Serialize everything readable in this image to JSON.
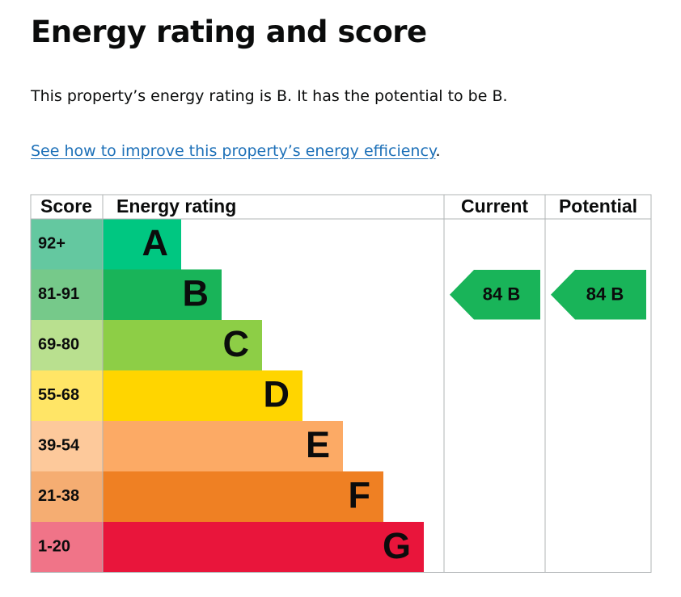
{
  "heading": "Energy rating and score",
  "summary": "This property’s energy rating is B. It has the potential to be B.",
  "link": {
    "text": "See how to improve this property’s energy efficiency",
    "suffix": "."
  },
  "chart_data": {
    "type": "table",
    "columns": [
      "Score",
      "Energy rating",
      "Current",
      "Potential"
    ],
    "bands": [
      {
        "range": "92+",
        "letter": "A",
        "color": "#008054",
        "score_bg": "#64c8a0",
        "fill": "#00c781"
      },
      {
        "range": "81-91",
        "letter": "B",
        "color": "#19b459",
        "score_bg": "#76c98a",
        "fill": "#19b459"
      },
      {
        "range": "69-80",
        "letter": "C",
        "color": "#8dce46",
        "score_bg": "#b9e08f",
        "fill": "#8dce46"
      },
      {
        "range": "55-68",
        "letter": "D",
        "color": "#ffd500",
        "score_bg": "#ffe566",
        "fill": "#ffd500"
      },
      {
        "range": "39-54",
        "letter": "E",
        "color": "#fcaa65",
        "score_bg": "#fdc99b",
        "fill": "#fcaa65"
      },
      {
        "range": "21-38",
        "letter": "F",
        "color": "#ef8023",
        "score_bg": "#f5ad72",
        "fill": "#ef8023"
      },
      {
        "range": "1-20",
        "letter": "G",
        "color": "#e9153b",
        "score_bg": "#f07488",
        "fill": "#e9153b"
      }
    ],
    "current": {
      "score": 84,
      "letter": "B",
      "label": "84  B",
      "color": "#19b459"
    },
    "potential": {
      "score": 84,
      "letter": "B",
      "label": "84  B",
      "color": "#19b459"
    }
  }
}
